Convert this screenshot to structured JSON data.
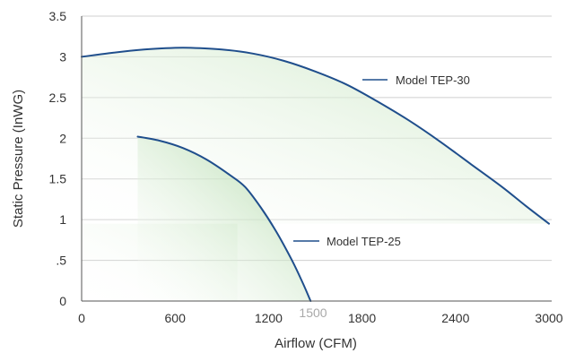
{
  "chart_data": {
    "type": "line",
    "xlabel": "Airflow (CFM)",
    "ylabel": "Static Pressure (InWG)",
    "xlim": [
      0,
      3000
    ],
    "ylim": [
      0,
      3.5
    ],
    "x_ticks": [
      {
        "value": 0,
        "label": "0"
      },
      {
        "value": 600,
        "label": "600"
      },
      {
        "value": 1200,
        "label": "1200"
      },
      {
        "value": 1800,
        "label": "1800"
      },
      {
        "value": 2400,
        "label": "2400"
      },
      {
        "value": 3000,
        "label": "3000"
      }
    ],
    "y_ticks": [
      {
        "value": 0,
        "label": "0"
      },
      {
        "value": 0.5,
        "label": ".5"
      },
      {
        "value": 1,
        "label": "1"
      },
      {
        "value": 1.5,
        "label": "1.5"
      },
      {
        "value": 2,
        "label": "2"
      },
      {
        "value": 2.5,
        "label": "2.5"
      },
      {
        "value": 3,
        "label": "3"
      },
      {
        "value": 3.5,
        "label": "3.5"
      }
    ],
    "grid": "horizontal",
    "annotation": {
      "x": 1500,
      "label": "1500"
    },
    "series": [
      {
        "name": "Model TEP-30",
        "color": "#1f4e8c",
        "fill": "#cfe8c8",
        "points": [
          [
            0,
            3.0
          ],
          [
            200,
            3.05
          ],
          [
            400,
            3.09
          ],
          [
            600,
            3.11
          ],
          [
            700,
            3.11
          ],
          [
            900,
            3.09
          ],
          [
            1100,
            3.04
          ],
          [
            1300,
            2.95
          ],
          [
            1500,
            2.82
          ],
          [
            1700,
            2.66
          ],
          [
            1900,
            2.45
          ],
          [
            2100,
            2.22
          ],
          [
            2300,
            1.96
          ],
          [
            2500,
            1.68
          ],
          [
            2700,
            1.4
          ],
          [
            2850,
            1.17
          ],
          [
            3000,
            0.95
          ]
        ]
      },
      {
        "name": "Model TEP-25",
        "color": "#1f4e8c",
        "fill": "#b8dcb0",
        "points": [
          [
            360,
            2.02
          ],
          [
            500,
            1.97
          ],
          [
            650,
            1.88
          ],
          [
            800,
            1.74
          ],
          [
            950,
            1.55
          ],
          [
            1050,
            1.4
          ],
          [
            1150,
            1.15
          ],
          [
            1250,
            0.85
          ],
          [
            1350,
            0.5
          ],
          [
            1420,
            0.22
          ],
          [
            1470,
            0.0
          ]
        ]
      }
    ]
  }
}
